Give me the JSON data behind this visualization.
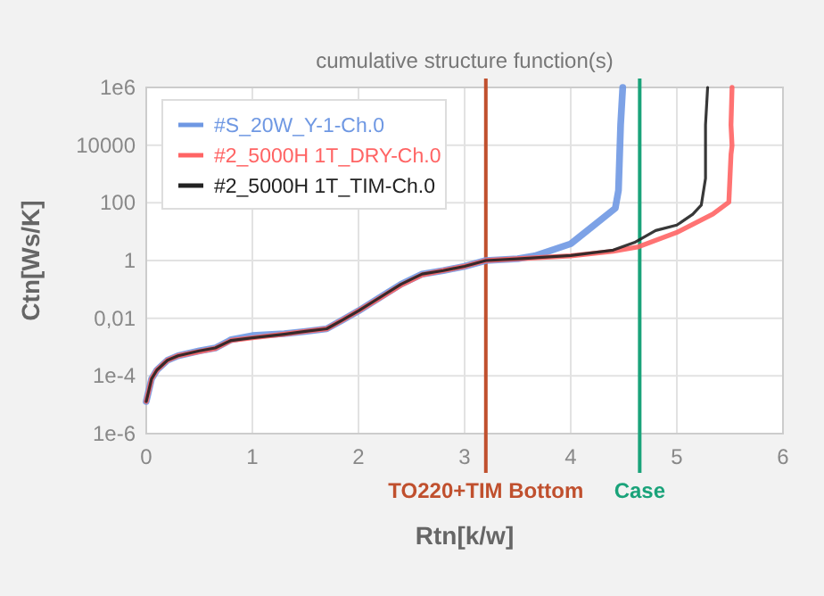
{
  "chart_data": {
    "type": "line",
    "title": "cumulative structure function(s)",
    "xlabel": "Rtn[k/w]",
    "ylabel": "Ctn[Ws/K]",
    "log": "y",
    "xlim": [
      0,
      6
    ],
    "xticks": [
      0,
      1,
      2,
      3,
      4,
      5,
      6
    ],
    "ylim": [
      1e-06,
      1000000.0
    ],
    "yticks": [
      {
        "value": 1e-06,
        "label": "1e-6"
      },
      {
        "value": 0.0001,
        "label": "1e-4"
      },
      {
        "value": 0.01,
        "label": "0,01"
      },
      1,
      100,
      10000,
      {
        "value": 1000000.0,
        "label": "1e6"
      }
    ],
    "grid": true,
    "legend": "top left",
    "line_style": "solid",
    "marker": "none",
    "ref_lines": [
      {
        "axis": "x",
        "value": 3.2,
        "label": "TO220+TIM Bottom",
        "color": "#c0502e"
      },
      {
        "axis": "x",
        "value": 4.65,
        "label": "Case",
        "color": "#1aa37a"
      }
    ],
    "series": [
      {
        "name": "#S_20W_Y-1-Ch.0",
        "color": "#6f98e3",
        "x": [
          0,
          0.05,
          0.1,
          0.2,
          0.3,
          0.5,
          0.65,
          0.8,
          1.0,
          1.3,
          1.5,
          1.7,
          1.85,
          2.0,
          2.2,
          2.4,
          2.6,
          2.8,
          3.0,
          3.2,
          3.5,
          3.66,
          4.0,
          4.42,
          4.45,
          4.47,
          4.49
        ],
        "values": [
          1.3e-05,
          7.9e-05,
          0.00016,
          0.00035,
          0.0005,
          0.00074,
          0.00093,
          0.0018,
          0.0025,
          0.0029,
          0.0035,
          0.0043,
          0.0087,
          0.018,
          0.052,
          0.15,
          0.34,
          0.45,
          0.63,
          1,
          1.15,
          1.45,
          3.8,
          65,
          270,
          50000,
          1000000
        ]
      },
      {
        "name": "#2_5000H 1T_DRY-Ch.0",
        "color": "#ff6464",
        "x": [
          0,
          0.05,
          0.1,
          0.2,
          0.3,
          0.5,
          0.65,
          0.8,
          1.0,
          1.3,
          1.5,
          1.7,
          1.85,
          2.0,
          2.2,
          2.4,
          2.6,
          2.8,
          3.0,
          3.2,
          3.5,
          4.0,
          4.4,
          4.64,
          5.01,
          5.34,
          5.49,
          5.51,
          5.52,
          5.51,
          5.52
        ],
        "values": [
          1.3e-05,
          7.9e-05,
          0.00016,
          0.00035,
          0.0005,
          0.0007,
          0.0009,
          0.0017,
          0.0021,
          0.0028,
          0.0035,
          0.0043,
          0.0087,
          0.018,
          0.05,
          0.14,
          0.32,
          0.45,
          0.63,
          1,
          1.15,
          1.45,
          2.1,
          3,
          9.8,
          41,
          105,
          4700,
          9500,
          50000,
          1000000
        ]
      },
      {
        "name": "#2_5000H 1T_TIM-Ch.0",
        "color": "#222222",
        "x": [
          0,
          0.05,
          0.1,
          0.2,
          0.3,
          0.5,
          0.65,
          0.8,
          1.0,
          1.3,
          1.5,
          1.7,
          1.85,
          2.0,
          2.2,
          2.4,
          2.6,
          2.8,
          3.0,
          3.2,
          3.5,
          4.0,
          4.4,
          4.6,
          4.8,
          5.0,
          5.15,
          5.23,
          5.27,
          5.27,
          5.29
        ],
        "values": [
          1.3e-05,
          7.9e-05,
          0.00016,
          0.00035,
          0.0005,
          0.00074,
          0.00093,
          0.0017,
          0.0021,
          0.0028,
          0.0035,
          0.0043,
          0.0087,
          0.018,
          0.052,
          0.15,
          0.34,
          0.45,
          0.63,
          1,
          1.15,
          1.5,
          2.3,
          4.2,
          11,
          17,
          40,
          83,
          700,
          50000,
          1000000
        ]
      }
    ]
  }
}
